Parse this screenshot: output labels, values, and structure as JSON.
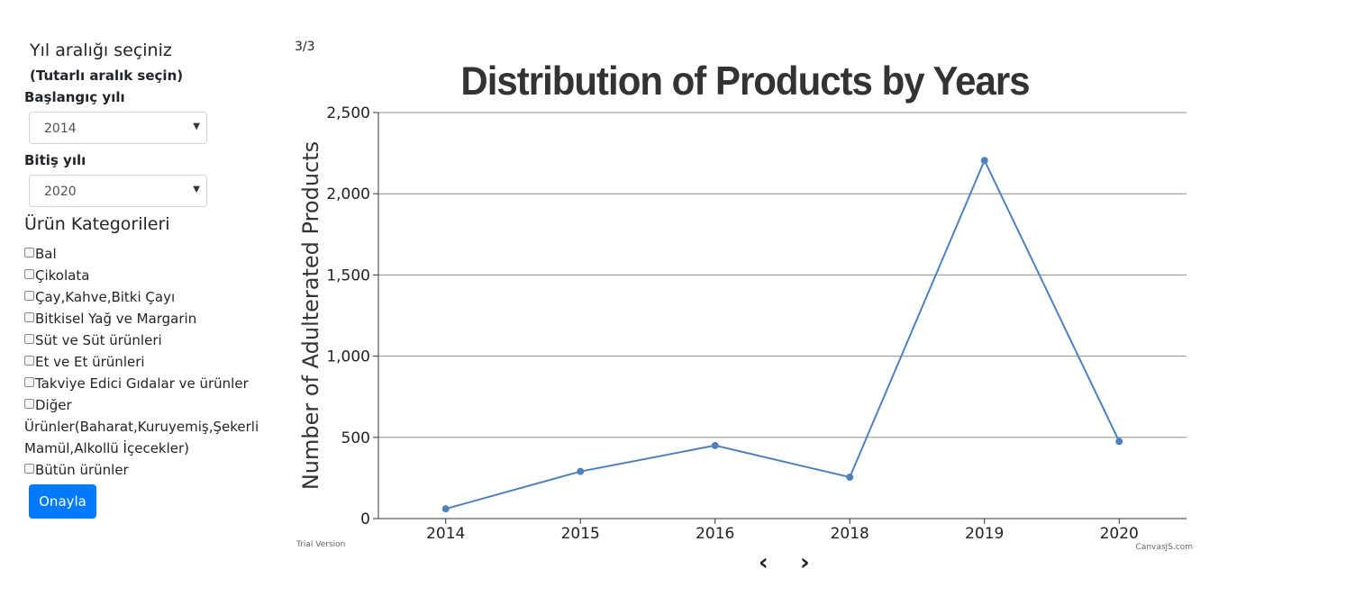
{
  "sidebar": {
    "title": "Yıl aralığı seçiniz",
    "subtitle": "(Tutarlı aralık seçin)",
    "start_label": "Başlangıç yılı",
    "start_value": "2014",
    "end_label": "Bitiş yılı",
    "end_value": "2020",
    "categories_heading": "Ürün Kategorileri",
    "categories": [
      "Bal",
      "Çikolata",
      "Çay,Kahve,Bitki Çayı",
      "Bitkisel Yağ ve Margarin",
      "Süt ve Süt ürünleri",
      "Et ve Et ürünleri",
      "Takviye Edici Gıdalar ve ürünler",
      "Diğer Ürünler(Baharat,Kuruyemiş,Şekerli Mamül,Alkollü İçecekler)",
      "Bütün ürünler"
    ],
    "confirm_label": "Onayla"
  },
  "pager": {
    "count": "3/3",
    "prev": "‹",
    "next": "›"
  },
  "chart_data": {
    "type": "line",
    "title": "Distribution of Products by Years",
    "xlabel": "",
    "ylabel": "Number of Adulterated Products",
    "categories": [
      "2014",
      "2015",
      "2016",
      "2018",
      "2019",
      "2020"
    ],
    "values": [
      60,
      290,
      450,
      255,
      2205,
      475
    ],
    "ylim": [
      0,
      2500
    ],
    "yticks": [
      0,
      500,
      1000,
      1500,
      2000,
      2500
    ],
    "ytick_labels": [
      "0",
      "500",
      "1,000",
      "1,500",
      "2,000",
      "2,500"
    ],
    "grid": true,
    "series_color": "#4f81bc",
    "trial_text": "Trial Version",
    "credit_text": "CanvasJS.com"
  }
}
